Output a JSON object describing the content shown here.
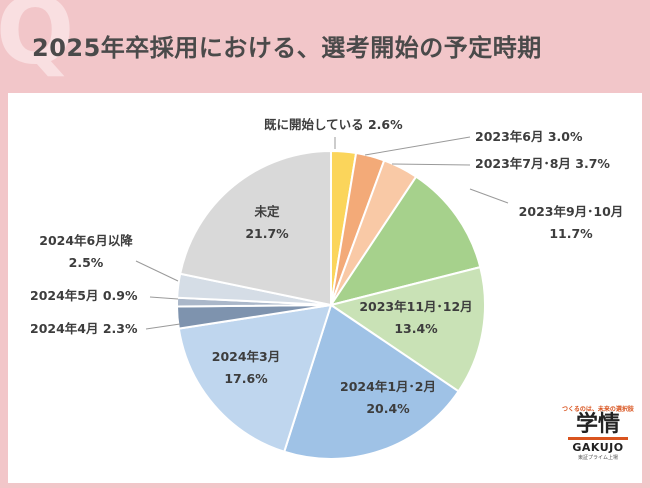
{
  "page": {
    "title": "2025年卒採用における、選考開始の予定時期",
    "q_mark": "Q"
  },
  "brand": {
    "tagline": "つくるのは、未来の選択肢",
    "main": "学情",
    "sub": "GAKUJO",
    "foot": "東証プライム上場"
  },
  "chart_data": {
    "type": "pie",
    "start": "12 o'clock",
    "direction": "clockwise",
    "slices": [
      {
        "name": "既に開始している",
        "value": 2.6,
        "label": "既に開始している 2.6%",
        "color": "#fbd55b"
      },
      {
        "name": "2023年6月",
        "value": 3.0,
        "label": "2023年6月 3.0%",
        "color": "#f3aa78"
      },
      {
        "name": "2023年7月･8月",
        "value": 3.7,
        "label": "2023年7月･8月 3.7%",
        "color": "#f9c9a6"
      },
      {
        "name": "2023年9月･10月",
        "value": 11.7,
        "label": "2023年9月･10月\n11.7%",
        "color": "#a6d18c"
      },
      {
        "name": "2023年11月･12月",
        "value": 13.4,
        "label": "2023年11月･12月\n13.4%",
        "color": "#c9e2b6"
      },
      {
        "name": "2024年1月･2月",
        "value": 20.4,
        "label": "2024年1月･2月\n20.4%",
        "color": "#9fc2e6"
      },
      {
        "name": "2024年3月",
        "value": 17.6,
        "label": "2024年3月\n17.6%",
        "color": "#bfd6ee"
      },
      {
        "name": "2024年4月",
        "value": 2.3,
        "label": "2024年4月 2.3%",
        "color": "#7e93ae"
      },
      {
        "name": "2024年5月",
        "value": 0.9,
        "label": "2024年5月 0.9%",
        "color": "#aab7c9"
      },
      {
        "name": "2024年6月以降",
        "value": 2.5,
        "label": "2024年6月以降\n2.5%",
        "color": "#d5dde6"
      },
      {
        "name": "未定",
        "value": 21.7,
        "label": "未定\n21.7%",
        "color": "#d9d9d9"
      }
    ]
  }
}
